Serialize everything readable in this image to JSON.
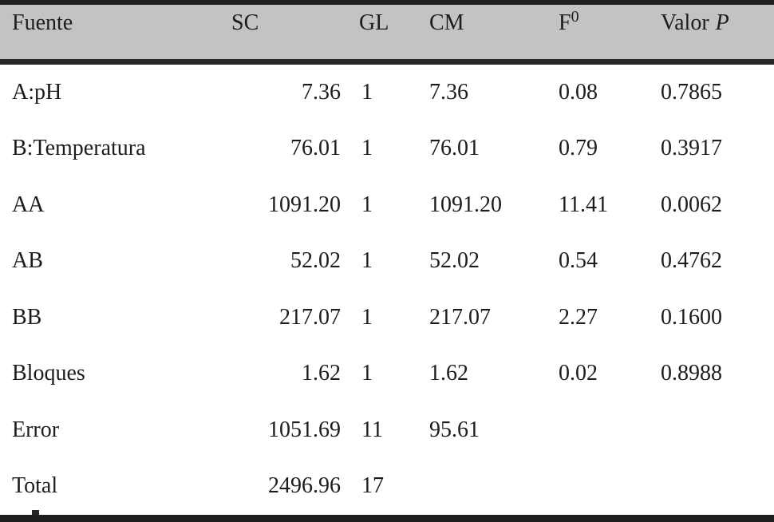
{
  "colors": {
    "header_bg": "#c3c3c1",
    "rule_dark": "#1f1f1f",
    "text": "#1c1c1c",
    "page_bg": "#ffffff"
  },
  "table": {
    "headers": {
      "fuente": "Fuente",
      "sc": "SC",
      "gl": "GL",
      "cm": "CM",
      "f0_base": "F",
      "f0_sub": "0",
      "valor_p_base": "Valor",
      "valor_p_italic": "P"
    },
    "rows": [
      {
        "fuente": "A:pH",
        "sc": "7.36",
        "gl": "1",
        "cm": "7.36",
        "f0": "0.08",
        "valor_p": "0.7865"
      },
      {
        "fuente": "B:Temperatura",
        "sc": "76.01",
        "gl": "1",
        "cm": "76.01",
        "f0": "0.79",
        "valor_p": "0.3917"
      },
      {
        "fuente": "AA",
        "sc": "1091.20",
        "gl": "1",
        "cm": "1091.20",
        "f0": "11.41",
        "valor_p": "0.0062"
      },
      {
        "fuente": "AB",
        "sc": "52.02",
        "gl": "1",
        "cm": "52.02",
        "f0": "0.54",
        "valor_p": "0.4762"
      },
      {
        "fuente": "BB",
        "sc": "217.07",
        "gl": "1",
        "cm": "217.07",
        "f0": "2.27",
        "valor_p": "0.1600"
      },
      {
        "fuente": "Bloques",
        "sc": "1.62",
        "gl": "1",
        "cm": "1.62",
        "f0": "0.02",
        "valor_p": "0.8988"
      },
      {
        "fuente": "Error",
        "sc": "1051.69",
        "gl": "11",
        "cm": "95.61",
        "f0": "",
        "valor_p": ""
      },
      {
        "fuente": "Total",
        "sc": "2496.96",
        "gl": "17",
        "cm": "",
        "f0": "",
        "valor_p": ""
      }
    ]
  }
}
